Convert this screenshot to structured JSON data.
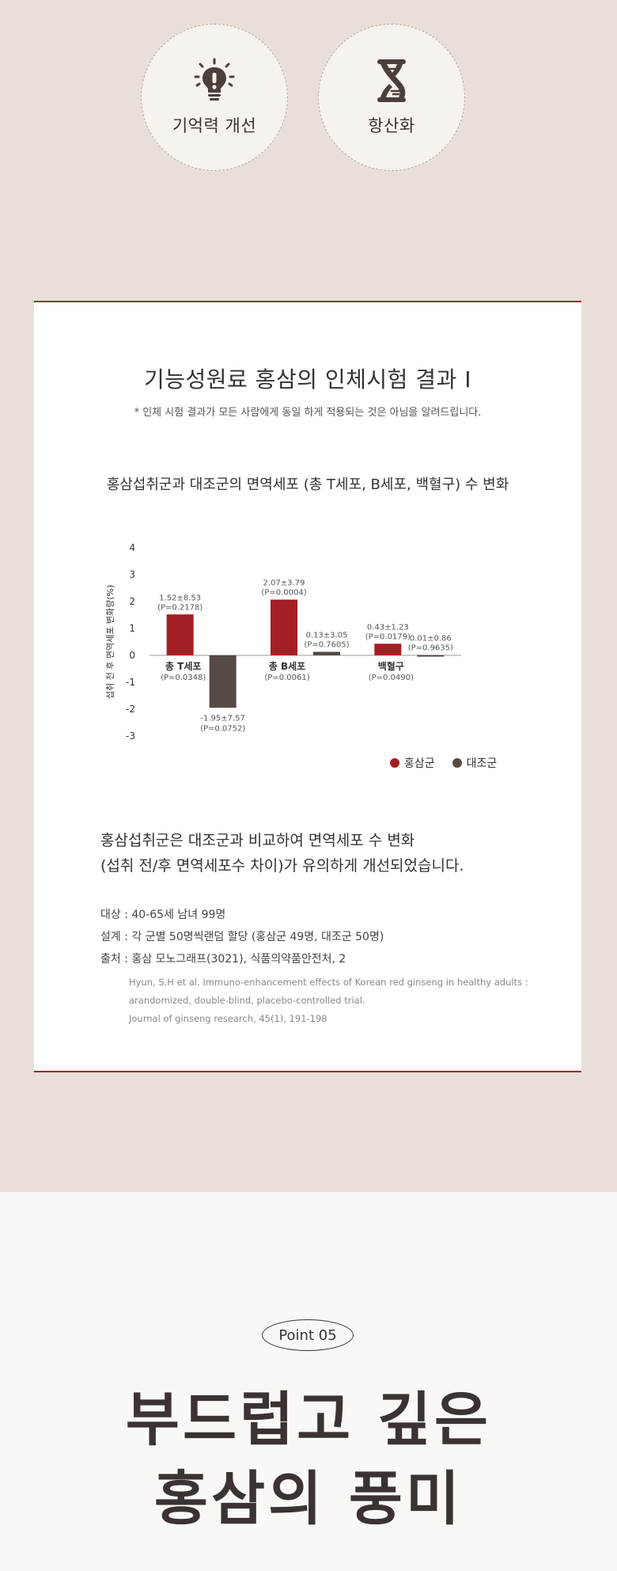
{
  "features": [
    {
      "icon": "lightbulb-icon",
      "label": "기억력 개선"
    },
    {
      "icon": "dna-icon",
      "label": "항산화"
    }
  ],
  "card": {
    "title": "기능성원료 홍삼의 인체시험 결과 I",
    "note": "* 인체 시험 결과가 모든 사람에게 동일 하게 적용되는 것은 아님을 알려드립니다.",
    "chart_heading": "홍삼섭취군과 대조군의 면역세포 (총 T세포, B세포, 백혈구) 수 변화",
    "summary_line1": "홍삼섭취군은 대조군과 비교하여 면역세포 수 변화",
    "summary_line2": "(섭취 전/후 면역세포수 차이)가 유의하게 개선되었습니다.",
    "detail_subject": "대상 : 40-65세 남녀 99명",
    "detail_design": "설계 : 각 군별 50명씩랜덤 할당 (홍삼군 49명, 대조군 50명)",
    "detail_source": "출처 : 홍삼 모노그래프(3021), 식품의약품안전처, 2",
    "ref1": "Hyun, S.H et al. Immuno-enhancement effects of Korean red ginseng in healthy adults :",
    "ref2": "arandomized, double-blind, placebo-controlled trial.",
    "ref3": "Journal of ginseng research, 45(1), 191-198"
  },
  "chart_data": {
    "type": "bar",
    "ylabel": "섭취 전 후 면역세포 변화량(%)",
    "ylim": [
      -3,
      4
    ],
    "yticks": [
      "4",
      "3",
      "2",
      "1",
      "0",
      "-1",
      "-2",
      "-3"
    ],
    "categories": [
      "총 T세포",
      "총 B세포",
      "백혈구"
    ],
    "category_pvalues": [
      "(P=0.0348)",
      "(P=0.0061)",
      "(P=0.0490)"
    ],
    "series": [
      {
        "name": "홍삼군",
        "color": "#a31e25",
        "values": [
          1.52,
          2.07,
          0.43
        ],
        "labels": [
          "1.52±8.53",
          "2.07±3.79",
          "0.43±1.23"
        ],
        "pvalues": [
          "(P=0.2178)",
          "(P=0.0004)",
          "(P=0.0179)"
        ]
      },
      {
        "name": "대조군",
        "color": "#564a45",
        "values": [
          -1.95,
          0.13,
          0.01
        ],
        "labels": [
          "-1.95±7.57",
          "0.13±3.05",
          "0.01±0.86"
        ],
        "pvalues": [
          "(P=0.0752)",
          "(P=0.7605)",
          "(P=0.9635)"
        ]
      }
    ],
    "legend_position": "bottom-right"
  },
  "bottom": {
    "badge": "Point 05",
    "headline_line1": "부드럽고 깊은",
    "headline_line2": "홍삼의 풍미"
  }
}
